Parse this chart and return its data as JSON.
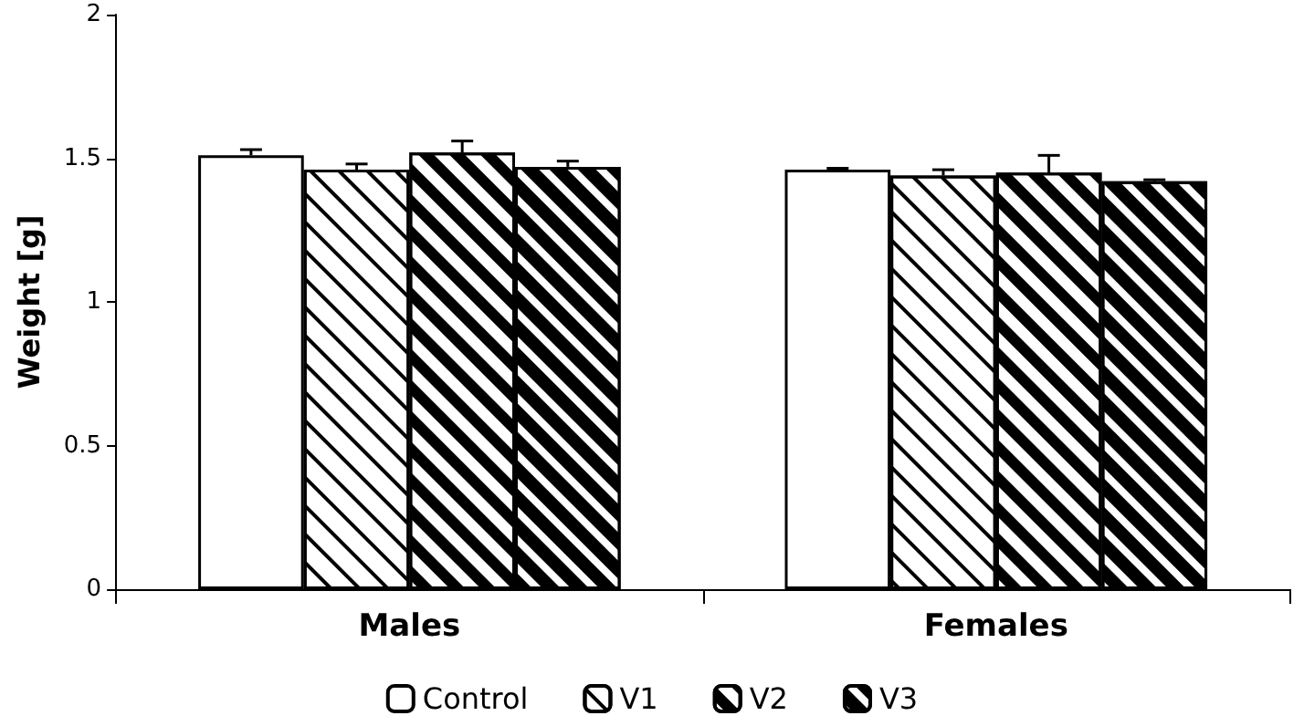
{
  "chart_data": {
    "type": "bar",
    "ylabel": "Weight [g]",
    "categories": [
      "Males",
      "Females"
    ],
    "series": [
      {
        "name": "Control",
        "color": "#ffffff",
        "values": [
          1.51,
          1.46
        ],
        "errors": [
          0.02,
          0.005
        ]
      },
      {
        "name": "V1",
        "color": "#ffffff",
        "values": [
          1.46,
          1.44
        ],
        "errors": [
          0.02,
          0.02
        ]
      },
      {
        "name": "V2",
        "color": "#ffffff",
        "values": [
          1.52,
          1.45
        ],
        "errors": [
          0.04,
          0.06
        ]
      },
      {
        "name": "V3",
        "color": "#ffffff",
        "values": [
          1.47,
          1.42
        ],
        "errors": [
          0.02,
          0.005
        ]
      }
    ],
    "ylim": [
      0,
      2
    ],
    "yticks": [
      0,
      0.5,
      1,
      1.5,
      2
    ],
    "grid": false,
    "legend": "bottom"
  }
}
